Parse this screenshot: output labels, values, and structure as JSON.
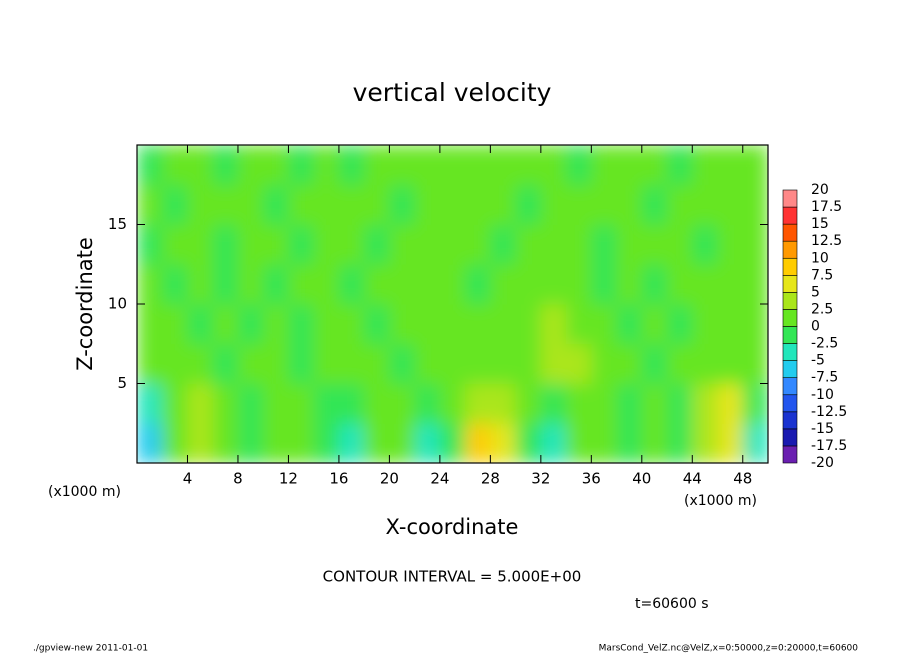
{
  "chart_data": {
    "type": "heatmap",
    "title": "vertical velocity",
    "xlabel": "X-coordinate",
    "ylabel": "Z-coordinate",
    "xunit": "(x1000 m)",
    "yunit": "(x1000 m)",
    "xlim": [
      0,
      50
    ],
    "ylim": [
      0,
      20
    ],
    "xticks": [
      4,
      8,
      12,
      16,
      20,
      24,
      28,
      32,
      36,
      40,
      44,
      48
    ],
    "yticks": [
      5,
      10,
      15
    ],
    "x": [
      1,
      3,
      5,
      7,
      9,
      11,
      13,
      15,
      17,
      19,
      21,
      23,
      25,
      27,
      29,
      31,
      33,
      35,
      37,
      39,
      41,
      43,
      45,
      47,
      49
    ],
    "y": [
      1.25,
      3.75,
      6.25,
      8.75,
      11.25,
      13.75,
      16.25,
      18.75
    ],
    "z": [
      [
        -6,
        2,
        4,
        1,
        -1,
        1,
        1,
        -2,
        -4,
        1,
        1,
        -4,
        -1,
        8,
        6,
        -1,
        -3,
        1,
        1,
        -1,
        1,
        -1,
        4,
        7,
        -4
      ],
      [
        -4,
        1,
        3,
        1,
        -1,
        1,
        1,
        -1,
        -2,
        1,
        1,
        -2,
        1,
        4,
        3,
        1,
        -1,
        1,
        1,
        -1,
        1,
        -1,
        3,
        5,
        -2
      ],
      [
        1,
        2,
        1,
        -1,
        1,
        1,
        -1,
        1,
        1,
        1,
        -1,
        1,
        1,
        1,
        1,
        1,
        3,
        3,
        1,
        1,
        -1,
        1,
        1,
        2,
        1
      ],
      [
        1,
        1,
        -1,
        1,
        -1,
        1,
        -1,
        1,
        1,
        -1,
        1,
        1,
        1,
        1,
        1,
        2,
        3,
        2,
        1,
        -1,
        1,
        -1,
        1,
        1,
        1
      ],
      [
        1,
        -1,
        1,
        -1,
        1,
        -1,
        1,
        1,
        -1,
        1,
        1,
        1,
        1,
        -1,
        1,
        1,
        2,
        1,
        -1,
        1,
        -1,
        1,
        1,
        1,
        1
      ],
      [
        -1,
        1,
        1,
        -1,
        1,
        1,
        -1,
        1,
        1,
        -1,
        1,
        1,
        1,
        1,
        -1,
        1,
        1,
        1,
        -1,
        1,
        1,
        1,
        -1,
        1,
        1
      ],
      [
        1,
        -1,
        1,
        1,
        1,
        -1,
        1,
        1,
        1,
        1,
        -1,
        1,
        1,
        1,
        1,
        -1,
        1,
        1,
        1,
        1,
        -1,
        1,
        1,
        1,
        1
      ],
      [
        -1,
        1,
        1,
        -1,
        1,
        1,
        -1,
        1,
        -1,
        1,
        1,
        1,
        1,
        1,
        1,
        1,
        1,
        -1,
        1,
        1,
        1,
        -1,
        1,
        1,
        1
      ]
    ],
    "levels": [
      -20,
      -17.5,
      -15,
      -12.5,
      -10,
      -7.5,
      -5,
      -2.5,
      0,
      2.5,
      5,
      7.5,
      10,
      12.5,
      15,
      17.5,
      20
    ],
    "colors": [
      "#6a1fb0",
      "#1a1ab0",
      "#1a33d0",
      "#2255ee",
      "#3388ff",
      "#22ccee",
      "#22e6bb",
      "#33e655",
      "#66e622",
      "#aae61a",
      "#e6e61a",
      "#ffcc00",
      "#ff9900",
      "#ff5500",
      "#ff3333",
      "#ff8888"
    ],
    "annotation": "CONTOUR INTERVAL = 5.000E+00",
    "time_label": "t=60600 s",
    "footer_left": "./gpview-new  2011-01-01",
    "footer_right": "MarsCond_VelZ.nc@VelZ,x=0:50000,z=0:20000,t=60600"
  }
}
